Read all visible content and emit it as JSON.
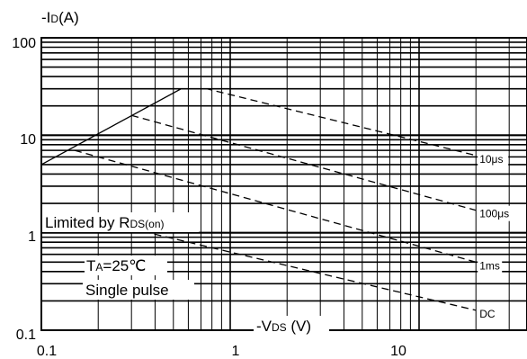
{
  "chart_data": {
    "type": "line",
    "x_scale": "log",
    "y_scale": "log",
    "xlim": [
      0.1,
      50
    ],
    "ylim": [
      0.1,
      100
    ],
    "x_ticks": [
      "0.1",
      "1",
      "10"
    ],
    "y_ticks": [
      "100",
      "10",
      "1",
      "0.1"
    ],
    "ylabel": {
      "prefix": "-I",
      "sub": "D",
      "unit": "(A)"
    },
    "xlabel": {
      "prefix": "-V",
      "sub": "DS",
      "unit": " (V)"
    },
    "annotations": {
      "limited": {
        "text": "Limited by R",
        "sub": "DS(on)"
      },
      "ta": {
        "prefix": "T",
        "sub": "A",
        "text": "=25℃"
      },
      "single": "Single pulse"
    },
    "grid": true,
    "series": [
      {
        "name": "10μs",
        "style": "dashed",
        "x": [
          0.1,
          0.75,
          20
        ],
        "y": [
          30,
          30,
          6.2
        ]
      },
      {
        "name": "100μs",
        "style": "dashed",
        "x": [
          0.3,
          20
        ],
        "y": [
          16,
          1.7
        ]
      },
      {
        "name": "1ms",
        "style": "dashed",
        "x": [
          0.15,
          20
        ],
        "y": [
          7,
          0.5
        ]
      },
      {
        "name": "DC",
        "style": "dashed",
        "x": [
          0.3,
          20
        ],
        "y": [
          1.1,
          0.16
        ]
      }
    ],
    "rds_on_limit": {
      "style": "solid",
      "x": [
        0.1,
        0.55,
        0.75
      ],
      "y": [
        5,
        30,
        30
      ]
    }
  }
}
